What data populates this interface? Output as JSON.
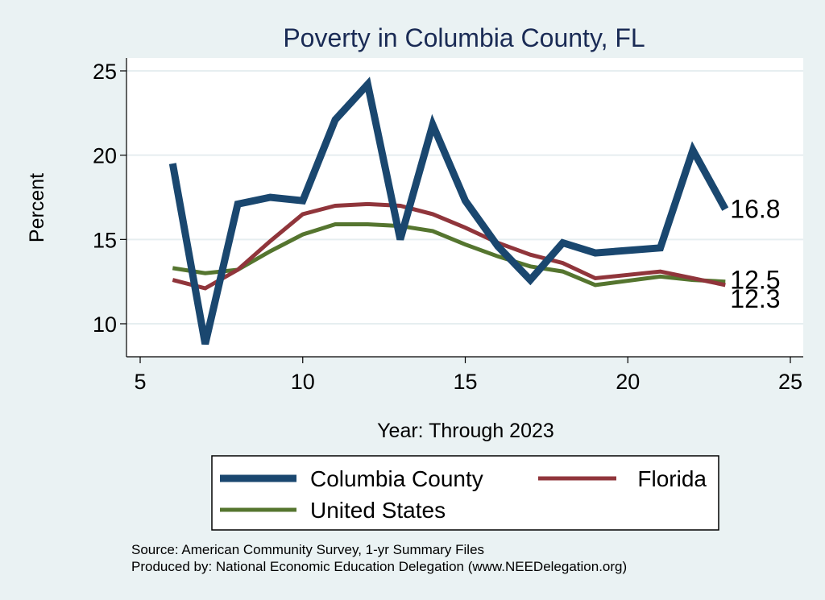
{
  "chart_data": {
    "type": "line",
    "title": "Poverty in Columbia County, FL",
    "xlabel": "Year: Through 2023",
    "ylabel": "Percent",
    "xlim": [
      5,
      25
    ],
    "ylim": [
      8,
      26
    ],
    "x_ticks": [
      5,
      10,
      15,
      20,
      25
    ],
    "y_ticks": [
      10,
      15,
      20,
      25
    ],
    "grid": true,
    "legend_position": "bottom",
    "series": [
      {
        "name": "Columbia County",
        "color": "#1a476f",
        "x": [
          6,
          7,
          8,
          9,
          10,
          11,
          12,
          13,
          14,
          15,
          16,
          17,
          18,
          19,
          21,
          22,
          23
        ],
        "values": [
          19.5,
          8.8,
          17.1,
          17.5,
          17.3,
          22.1,
          24.2,
          15.0,
          21.8,
          17.3,
          14.6,
          12.6,
          14.8,
          14.2,
          14.5,
          20.3,
          16.8
        ],
        "end_label": "16.8"
      },
      {
        "name": "Florida",
        "color": "#90353b",
        "x": [
          6,
          7,
          8,
          9,
          10,
          11,
          12,
          13,
          14,
          15,
          16,
          17,
          18,
          19,
          21,
          22,
          23
        ],
        "values": [
          12.6,
          12.1,
          13.2,
          14.9,
          16.5,
          17.0,
          17.1,
          17.0,
          16.5,
          15.7,
          14.8,
          14.1,
          13.6,
          12.7,
          13.1,
          12.7,
          12.3
        ],
        "end_label": "12.3"
      },
      {
        "name": "United States",
        "color": "#55752f",
        "x": [
          6,
          7,
          8,
          9,
          10,
          11,
          12,
          13,
          14,
          15,
          16,
          17,
          18,
          19,
          21,
          22,
          23
        ],
        "values": [
          13.3,
          13.0,
          13.2,
          14.3,
          15.3,
          15.9,
          15.9,
          15.8,
          15.5,
          14.7,
          14.0,
          13.4,
          13.1,
          12.3,
          12.8,
          12.6,
          12.5
        ],
        "end_label": "12.5"
      }
    ],
    "source_note": "Source: American Community Survey, 1-yr Summary Files",
    "produced_note": "Produced by: National Economic Education Delegation (www.NEEDelegation.org)"
  }
}
